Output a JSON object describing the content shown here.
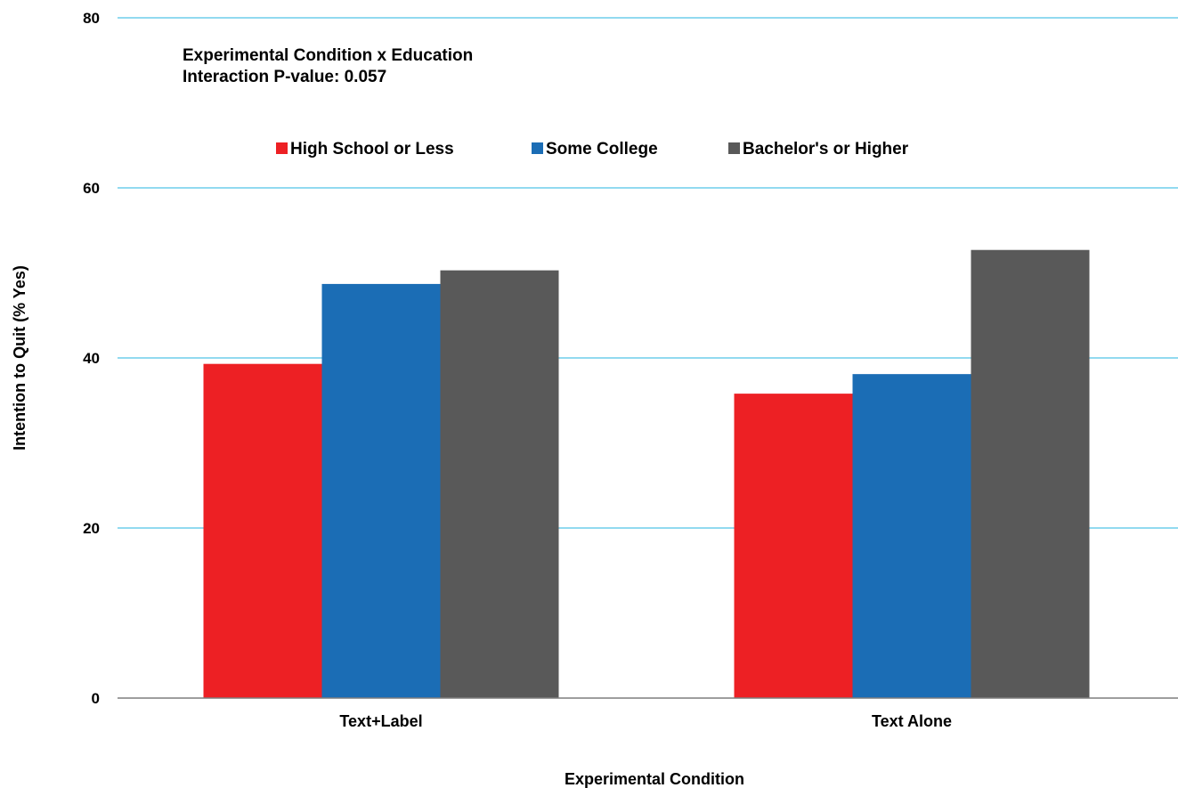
{
  "chart_data": {
    "type": "bar",
    "title": "",
    "annotation": [
      "Experimental Condition x Education",
      "Interaction P-value: 0.057"
    ],
    "xlabel": "Experimental Condition",
    "ylabel": "Intention to Quit (% Yes)",
    "categories": [
      "Text+Label",
      "Text Alone"
    ],
    "series": [
      {
        "name": "High School or Less",
        "values": [
          39.3,
          35.8
        ],
        "color": "#ed2024"
      },
      {
        "name": "Some College",
        "values": [
          48.7,
          38.1
        ],
        "color": "#1b6db5"
      },
      {
        "name": "Bachelor's or Higher",
        "values": [
          50.3,
          52.7
        ],
        "color": "#595959"
      }
    ],
    "ylim": [
      0,
      80
    ],
    "yticks": [
      0,
      20,
      40,
      60,
      80
    ],
    "grid": true,
    "gridColor": "#52c3e6",
    "legend": "top-center"
  }
}
